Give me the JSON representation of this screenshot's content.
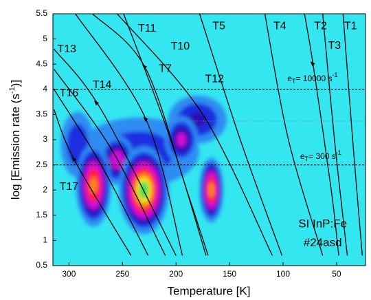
{
  "chart_data": {
    "type": "heatmap",
    "xlabel": "Temperature [K]",
    "ylabel": {
      "text": "log [Emission rate (s",
      "sup": "-1",
      "tail": ")]"
    },
    "xlim": [
      315,
      23
    ],
    "ylim": [
      0.5,
      5.5
    ],
    "xticks": [
      300,
      250,
      200,
      150,
      100,
      50
    ],
    "yticks": [
      0.5,
      1,
      1.5,
      2,
      2.5,
      3,
      3.5,
      4,
      4.5,
      5,
      5.5
    ],
    "background": "#33e6f0",
    "colormap": [
      {
        "level": 0.15,
        "color": "#2f8cf2"
      },
      {
        "level": 0.25,
        "color": "#1a2ee0"
      },
      {
        "level": 0.35,
        "color": "#2a0ab0"
      },
      {
        "level": 0.45,
        "color": "#d010d8"
      },
      {
        "level": 0.6,
        "color": "#ff1a40"
      },
      {
        "level": 0.75,
        "color": "#ff8a10"
      },
      {
        "level": 0.85,
        "color": "#f6e21a"
      },
      {
        "level": 0.93,
        "color": "#3ee05a"
      }
    ],
    "blobs": [
      {
        "x": 235,
        "y": 2.75,
        "sx": 45,
        "sy": 0.55,
        "intensity": 0.33
      },
      {
        "x": 292,
        "y": 2.9,
        "sx": 12,
        "sy": 0.5,
        "intensity": 0.35
      },
      {
        "x": 180,
        "y": 3.4,
        "sx": 20,
        "sy": 0.35,
        "intensity": 0.38
      },
      {
        "x": 195,
        "y": 3.0,
        "sx": 10,
        "sy": 0.3,
        "intensity": 0.5
      },
      {
        "x": 255,
        "y": 2.6,
        "sx": 10,
        "sy": 0.3,
        "intensity": 0.55
      },
      {
        "x": 277,
        "y": 2.1,
        "sx": 9,
        "sy": 0.45,
        "intensity": 0.8
      },
      {
        "x": 230,
        "y": 2.0,
        "sx": 12,
        "sy": 0.45,
        "intensity": 1.0
      },
      {
        "x": 167,
        "y": 2.0,
        "sx": 6,
        "sy": 0.35,
        "intensity": 0.82
      }
    ],
    "curves": [
      {
        "name": "T1",
        "x": [
          44,
          35,
          26
        ],
        "y": [
          5.5,
          3,
          0.7
        ],
        "label_at": [
          37,
          5.25
        ]
      },
      {
        "name": "T2",
        "x": [
          63,
          52,
          40
        ],
        "y": [
          5.5,
          3,
          0.7
        ],
        "label_at": [
          65,
          5.25
        ]
      },
      {
        "name": "T3",
        "x": [
          80,
          72,
          55,
          48
        ],
        "y": [
          5.5,
          4.5,
          2,
          0.7
        ],
        "label_at": [
          52,
          4.86
        ],
        "arrow": [
          72,
          4.5
        ]
      },
      {
        "name": "T4",
        "x": [
          117,
          95,
          63
        ],
        "y": [
          5.5,
          3,
          0.7
        ],
        "label_at": [
          103,
          5.25
        ]
      },
      {
        "name": "T5",
        "x": [
          178,
          140,
          101
        ],
        "y": [
          5.5,
          3,
          0.7
        ],
        "label_at": [
          160,
          5.25
        ]
      },
      {
        "name": "T11",
        "x": [
          249,
          205,
          172
        ],
        "y": [
          5.5,
          3,
          0.7
        ],
        "label_at": [
          227,
          5.2
        ]
      },
      {
        "name": "T10",
        "x": [
          278,
          229,
          190,
          170
        ],
        "y": [
          5.5,
          4.44,
          2,
          0.7
        ],
        "label_at": [
          196,
          4.85
        ],
        "arrow": [
          229,
          4.44
        ]
      },
      {
        "name": "T7",
        "x": [
          294,
          228,
          194
        ],
        "y": [
          5.5,
          3.4,
          0.7
        ],
        "label_at": [
          210,
          4.4
        ],
        "arrow": [
          228,
          3.4
        ]
      },
      {
        "name": "T12",
        "x": [
          255,
          175,
          110
        ],
        "y": [
          5.5,
          3.5,
          0.7
        ],
        "label_at": [
          164,
          4.2
        ]
      },
      {
        "name": "T13",
        "x": [
          314,
          270,
          200
        ],
        "y": [
          4.8,
          3.6,
          0.7
        ],
        "label_at": [
          302,
          4.79
        ],
        "arrow": [
          274,
          3.72
        ]
      },
      {
        "name": "T14",
        "x": [
          314,
          260,
          210
        ],
        "y": [
          4.4,
          2.8,
          0.7
        ],
        "label_at": [
          269,
          4.08
        ]
      },
      {
        "name": "T16",
        "x": [
          314,
          270,
          226
        ],
        "y": [
          4.0,
          2.5,
          0.7
        ],
        "label_at": [
          300,
          3.92
        ]
      },
      {
        "name": "T17",
        "x": [
          314,
          295,
          242
        ],
        "y": [
          3.6,
          2.6,
          0.7
        ],
        "label_at": [
          300,
          2.06
        ],
        "arrow": [
          295,
          2.6
        ]
      }
    ],
    "hlines": [
      {
        "value": 4,
        "style": "dashed",
        "color": "#000000"
      },
      {
        "value": 3.37,
        "style": "dotted",
        "color": "#4a8fd0"
      },
      {
        "value": 2.5,
        "style": "dashed",
        "color": "#000000"
      }
    ],
    "annotations": [
      {
        "text": "e",
        "sub": "T",
        "tail": "= 10000 s",
        "sup": "-1",
        "at": [
          96,
          4.2
        ]
      },
      {
        "text": "e",
        "sub": "T",
        "tail": "= 300 s",
        "sup": "-1",
        "at": [
          84,
          2.66
        ]
      },
      {
        "text": "SI InP:Fe",
        "at": [
          63,
          1.31
        ]
      },
      {
        "text": "#24asd",
        "at": [
          63,
          0.94
        ]
      }
    ]
  }
}
